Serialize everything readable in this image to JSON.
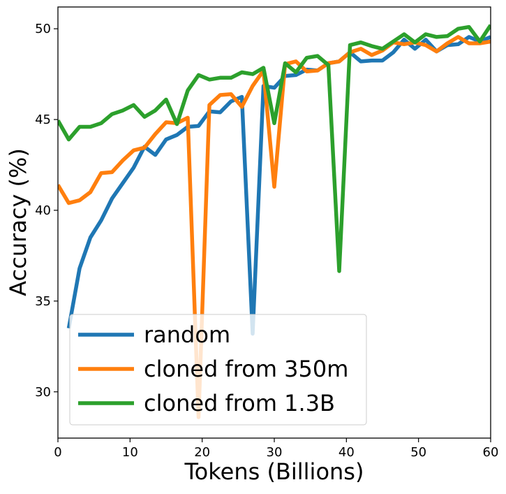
{
  "chart_data": {
    "type": "line",
    "title": "",
    "xlabel": "Tokens (Billions)",
    "ylabel": "Accuracy (%)",
    "xlim": [
      0,
      60
    ],
    "ylim": [
      27.45,
      51.2
    ],
    "xticks": [
      0,
      10,
      20,
      30,
      40,
      50,
      60
    ],
    "yticks": [
      30,
      35,
      40,
      45,
      50
    ],
    "grid": false,
    "legend_position": "bottom-left",
    "series": [
      {
        "name": "random",
        "color": "#1f77b4",
        "x": [
          1.5,
          3,
          4.5,
          6,
          7.5,
          9,
          10.5,
          12,
          13.5,
          15,
          16.5,
          18,
          19.5,
          21,
          22.5,
          24,
          25.5,
          27,
          28.5,
          30,
          31.5,
          33,
          34.5,
          36,
          37.5,
          39,
          40.5,
          42,
          43.5,
          45,
          46.5,
          48,
          49.5,
          51,
          52.5,
          54,
          55.5,
          57,
          58.5,
          60
        ],
        "y": [
          33.5,
          36.8,
          38.5,
          39.45,
          40.65,
          41.5,
          42.35,
          43.5,
          43.05,
          43.9,
          44.15,
          44.6,
          44.65,
          45.45,
          45.4,
          46.0,
          46.25,
          33.2,
          46.85,
          46.75,
          47.4,
          47.45,
          47.75,
          47.7,
          48.1,
          48.2,
          48.7,
          48.2,
          48.25,
          48.25,
          48.7,
          49.4,
          48.9,
          49.4,
          48.75,
          49.1,
          49.15,
          49.55,
          49.3,
          49.55
        ]
      },
      {
        "name": "cloned from 350m",
        "color": "#ff7f0e",
        "x": [
          0,
          1.5,
          3,
          4.5,
          6,
          7.5,
          9,
          10.5,
          12,
          13.5,
          15,
          16.5,
          18,
          19.5,
          21,
          22.5,
          24,
          25.5,
          27,
          28.5,
          30,
          31.5,
          33,
          34.5,
          36,
          37.5,
          39,
          40.5,
          42,
          43.5,
          45,
          46.5,
          48,
          49.5,
          51,
          52.5,
          54,
          55.5,
          57,
          58.5,
          60
        ],
        "y": [
          41.4,
          40.4,
          40.55,
          41.0,
          42.05,
          42.1,
          42.75,
          43.3,
          43.45,
          44.2,
          44.85,
          44.8,
          45.1,
          28.6,
          45.8,
          46.35,
          46.4,
          45.7,
          46.85,
          47.7,
          41.3,
          48.05,
          48.2,
          47.65,
          47.7,
          48.1,
          48.2,
          48.7,
          48.9,
          48.55,
          48.8,
          49.25,
          49.15,
          49.25,
          49.1,
          48.75,
          49.2,
          49.55,
          49.2,
          49.2,
          49.3
        ]
      },
      {
        "name": "cloned from 1.3B",
        "color": "#2ca02c",
        "x": [
          0,
          1.5,
          3,
          4.5,
          6,
          7.5,
          9,
          10.5,
          12,
          13.5,
          15,
          16.5,
          18,
          19.5,
          21,
          22.5,
          24,
          25.5,
          27,
          28.5,
          30,
          31.5,
          33,
          34.5,
          36,
          37.5,
          39,
          40.5,
          42,
          43.5,
          45,
          46.5,
          48,
          49.5,
          51,
          52.5,
          54,
          55.5,
          57,
          58.5,
          60
        ],
        "y": [
          44.95,
          43.9,
          44.6,
          44.6,
          44.8,
          45.3,
          45.5,
          45.8,
          45.15,
          45.5,
          46.1,
          44.75,
          46.6,
          47.45,
          47.2,
          47.3,
          47.3,
          47.6,
          47.5,
          47.85,
          44.8,
          48.1,
          47.6,
          48.4,
          48.5,
          48.0,
          36.65,
          49.1,
          49.25,
          49.05,
          48.9,
          49.3,
          49.7,
          49.25,
          49.7,
          49.55,
          49.6,
          50.0,
          50.1,
          49.3,
          50.2
        ]
      }
    ]
  }
}
